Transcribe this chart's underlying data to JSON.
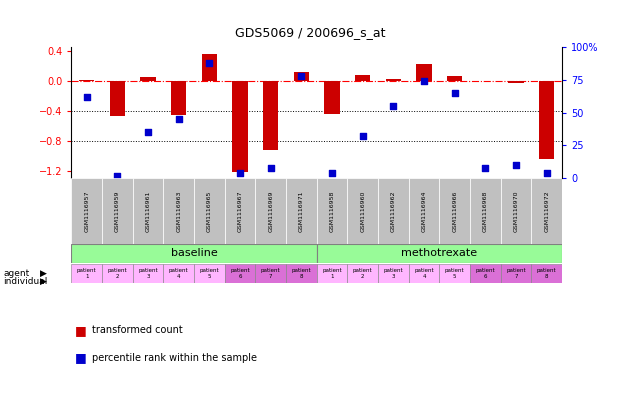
{
  "title": "GDS5069 / 200696_s_at",
  "samples": [
    "GSM1116957",
    "GSM1116959",
    "GSM1116961",
    "GSM1116963",
    "GSM1116965",
    "GSM1116967",
    "GSM1116969",
    "GSM1116971",
    "GSM1116958",
    "GSM1116960",
    "GSM1116962",
    "GSM1116964",
    "GSM1116966",
    "GSM1116968",
    "GSM1116970",
    "GSM1116972"
  ],
  "red_values": [
    0.01,
    -0.47,
    0.05,
    -0.46,
    0.36,
    -1.22,
    -0.93,
    0.12,
    -0.44,
    0.08,
    0.03,
    0.22,
    0.07,
    0.0,
    -0.03,
    -1.05
  ],
  "blue_values_pct": [
    62,
    2,
    35,
    45,
    88,
    4,
    8,
    78,
    4,
    32,
    55,
    74,
    65,
    8,
    10,
    4
  ],
  "ylim_left": [
    -1.3,
    0.45
  ],
  "ylim_right": [
    0,
    100
  ],
  "yticks_left": [
    0.4,
    0.0,
    -0.4,
    -0.8,
    -1.2
  ],
  "yticks_right": [
    100,
    75,
    50,
    25,
    0
  ],
  "agent_baseline_color": "#98FB98",
  "agent_methotrexate_color": "#98FB98",
  "individual_color_light": "#FFB6FF",
  "individual_color_dark": "#DA70D6",
  "agent_baseline_label": "baseline",
  "agent_methotrexate_label": "methotrexate",
  "bar_color_red": "#CC0000",
  "bar_color_blue": "#0000CC",
  "header_bg_color": "#C0C0C0",
  "n_baseline": 8,
  "n_methotrexate": 8
}
